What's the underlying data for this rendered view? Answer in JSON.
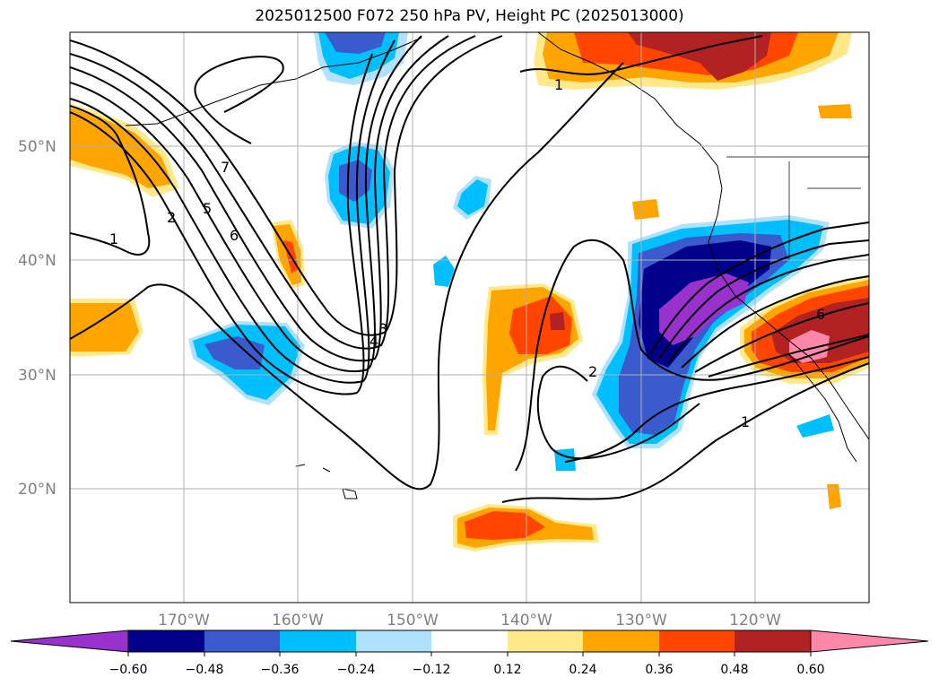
{
  "title": "2025012500 F072 250 hPa PV, Height PC (2025013000)",
  "map": {
    "lat_ticks": [
      "50°N",
      "40°N",
      "30°N",
      "20°N"
    ],
    "lon_ticks": [
      "170°W",
      "160°W",
      "150°W",
      "140°W",
      "130°W",
      "120°W"
    ],
    "contour_labels": [
      "1",
      "2",
      "5",
      "6",
      "7",
      "3",
      "4",
      "1",
      "2",
      "1",
      "6"
    ],
    "grid": true
  },
  "colorbar": {
    "ticks": [
      "−0.60",
      "−0.48",
      "−0.36",
      "−0.24",
      "−0.12",
      "0.12",
      "0.24",
      "0.36",
      "0.48",
      "0.60"
    ],
    "colors": [
      "#9932cc",
      "#00008b",
      "#3a5bcd",
      "#00bfff",
      "#b0e2ff",
      "#ffffff",
      "#ffe98a",
      "#ffa500",
      "#ff4500",
      "#b22222",
      "#ff88aa"
    ]
  }
}
